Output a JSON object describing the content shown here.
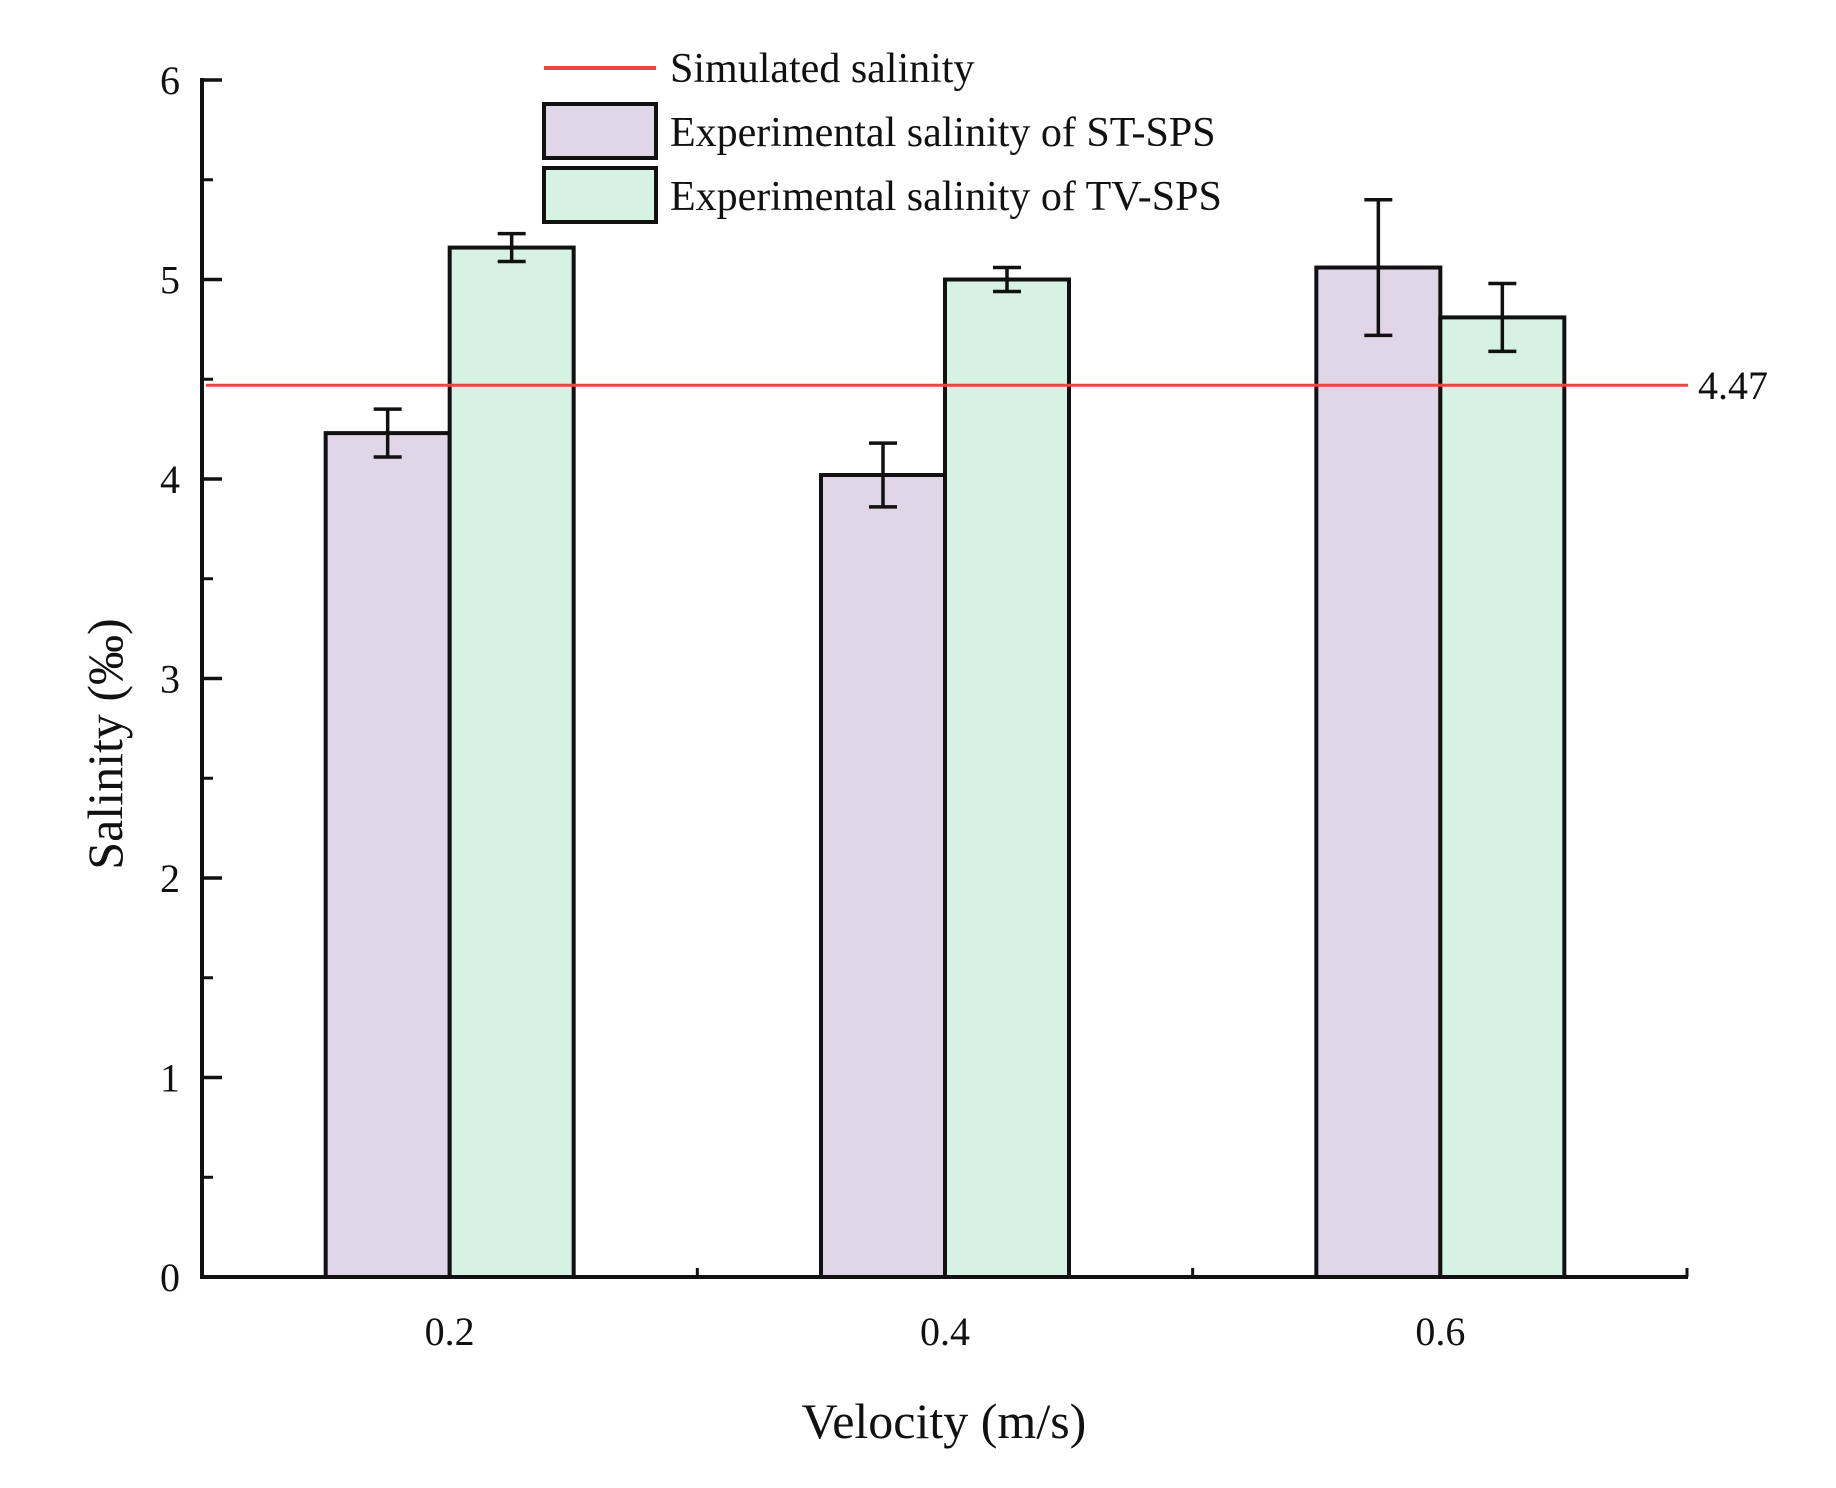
{
  "chart_data": {
    "type": "bar",
    "title": "",
    "xlabel": "Velocity (m/s)",
    "ylabel": "Salinity (‰)",
    "categories": [
      "0.2",
      "0.4",
      "0.6"
    ],
    "ylim": [
      0,
      6
    ],
    "yticks": [
      0,
      1,
      2,
      3,
      4,
      5,
      6
    ],
    "ytick_labels": [
      "0",
      "1",
      "2",
      "3",
      "4",
      "5",
      "6"
    ],
    "series": [
      {
        "name": "Experimental salinity of ST-SPS",
        "color": "#e1d6e8",
        "values": [
          4.23,
          4.02,
          5.06
        ],
        "errors": [
          0.12,
          0.16,
          0.34
        ]
      },
      {
        "name": "Experimental salinity of TV-SPS",
        "color": "#d6f2e4",
        "values": [
          5.16,
          5.0,
          4.81
        ],
        "errors": [
          0.07,
          0.06,
          0.17
        ]
      }
    ],
    "reference_line": {
      "name": "Simulated salinity",
      "value": 4.47,
      "label": "4.47",
      "color": "#ef4444"
    },
    "legend_position": "top-center",
    "grid": false
  }
}
